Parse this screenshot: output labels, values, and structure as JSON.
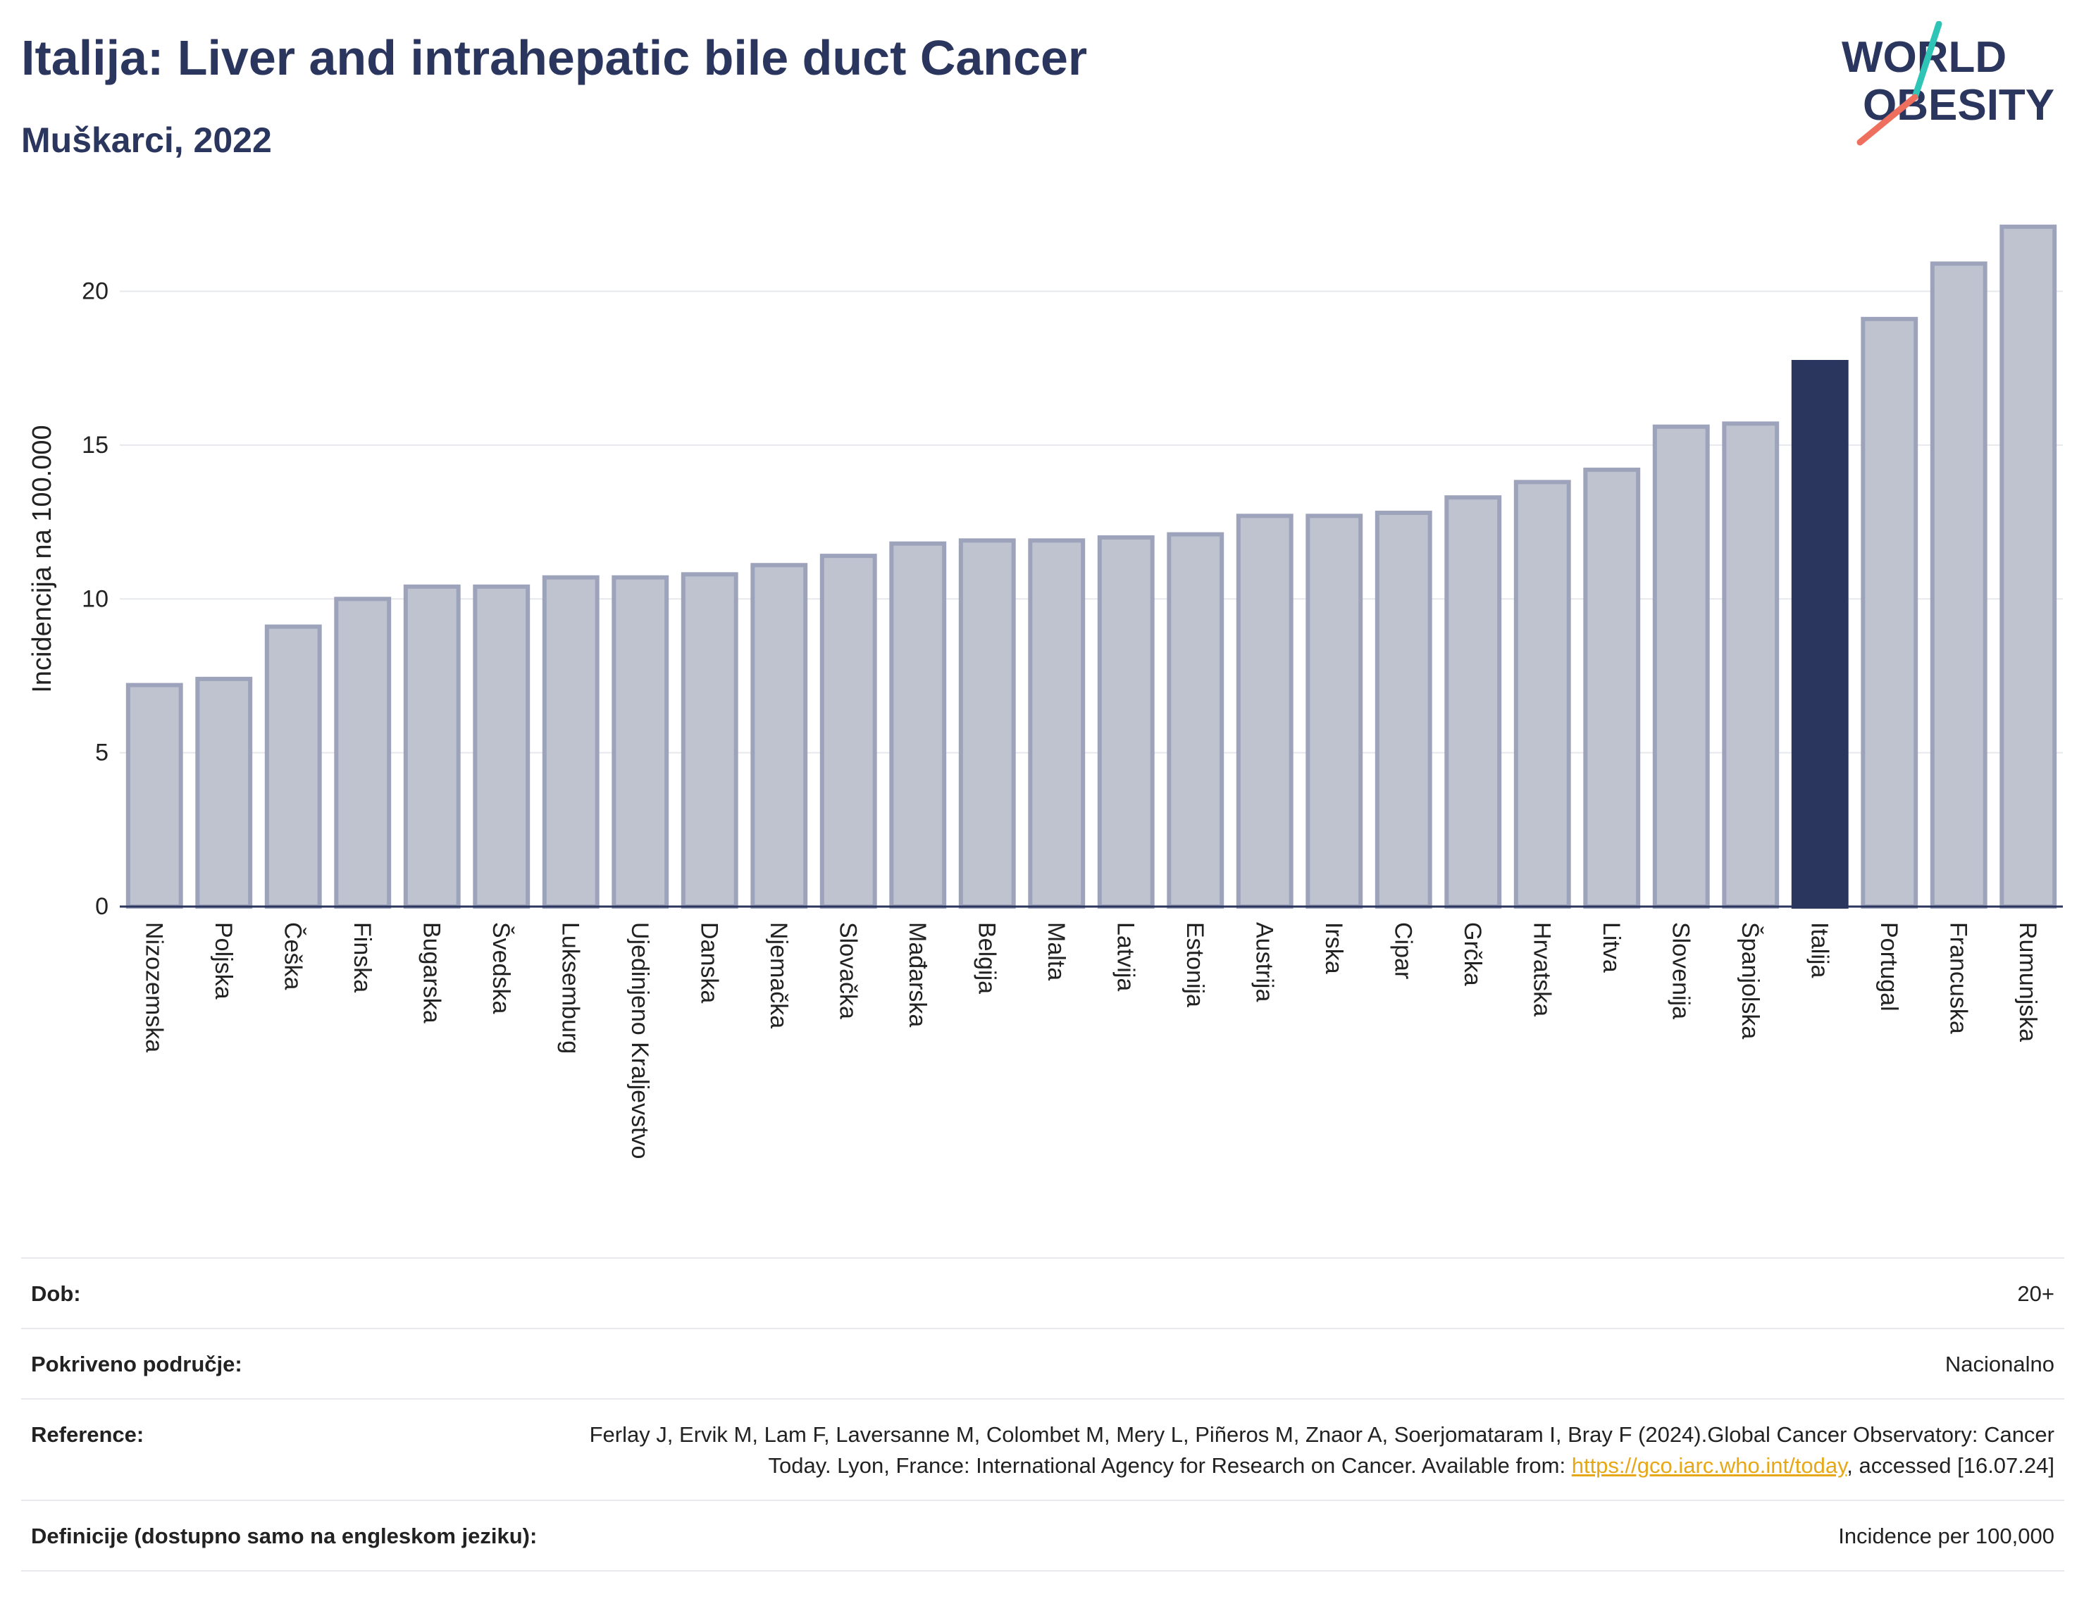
{
  "header": {
    "title": "Italija: Liver and intrahepatic bile duct Cancer",
    "subtitle": "Muškarci, 2022"
  },
  "logo": {
    "line1": "WORLD",
    "line2": "OBESITY"
  },
  "colors": {
    "bar_default": "#bfc3d0",
    "bar_border": "#9da3ba",
    "bar_highlight": "#2b365f",
    "grid": "#e6e8ee",
    "text": "#2b365f"
  },
  "chart_data": {
    "type": "bar",
    "ylabel": "Incidencija na 100.000",
    "ylim": [
      0,
      22.6
    ],
    "yticks": [
      0,
      5,
      10,
      15,
      20
    ],
    "grid": true,
    "highlight": "Italija",
    "categories": [
      "Nizozemska",
      "Poljska",
      "Češka",
      "Finska",
      "Bugarska",
      "Švedska",
      "Luksemburg",
      "Ujedinjeno Kraljevstvo",
      "Danska",
      "Njemačka",
      "Slovačka",
      "Mađarska",
      "Belgija",
      "Malta",
      "Latvija",
      "Estonija",
      "Austrija",
      "Irska",
      "Cipar",
      "Grčka",
      "Hrvatska",
      "Litva",
      "Slovenija",
      "Španjolska",
      "Italija",
      "Portugal",
      "Francuska",
      "Rumunjska"
    ],
    "values": [
      7.2,
      7.4,
      9.1,
      10.0,
      10.4,
      10.4,
      10.7,
      10.7,
      10.8,
      11.1,
      11.4,
      11.8,
      11.9,
      11.9,
      12.0,
      12.1,
      12.7,
      12.7,
      12.8,
      13.3,
      13.8,
      14.2,
      15.6,
      15.7,
      17.7,
      19.1,
      20.9,
      22.1
    ]
  },
  "meta": [
    {
      "key": "Dob:",
      "value": "20+"
    },
    {
      "key": "Pokriveno područje:",
      "value": "Nacionalno"
    },
    {
      "key": "Reference:",
      "value_pre": "Ferlay J, Ervik M, Lam F, Laversanne M, Colombet M, Mery L, Piñeros M, Znaor A, Soerjomataram I, Bray F (2024).Global Cancer Observatory: Cancer Today. Lyon, France: International Agency for Research on Cancer. Available from: ",
      "link": "https://gco.iarc.who.int/today",
      "value_post": ", accessed [16.07.24]"
    },
    {
      "key": "Definicije (dostupno samo na engleskom jeziku):",
      "value": "Incidence per 100,000"
    }
  ]
}
